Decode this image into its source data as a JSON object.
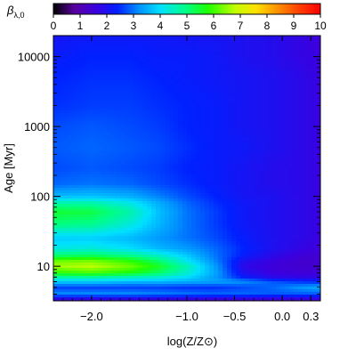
{
  "chart_data": {
    "type": "heatmap",
    "title": "",
    "xlabel": "log(Z/Z⊙)",
    "ylabel": "Age [Myr]",
    "colorbar_label": "β",
    "colorbar_label_subscript": "λ,0",
    "colorbar_range": [
      0,
      10
    ],
    "colorbar_ticks": [
      "0",
      "1",
      "2",
      "3",
      "4",
      "5",
      "6",
      "7",
      "8",
      "9",
      "10"
    ],
    "colormap": "rainbow (black → purple → blue → cyan → green → yellow → orange → red)",
    "x_scale": "linear",
    "y_scale": "log",
    "xlim": [
      -2.4,
      0.4
    ],
    "ylim": [
      3.2,
      20000
    ],
    "x_ticks": [
      {
        "value": -2.0,
        "label": "−2.0"
      },
      {
        "value": -1.0,
        "label": "−1.0"
      },
      {
        "value": -0.5,
        "label": "−0.5"
      },
      {
        "value": 0.0,
        "label": "0.0"
      },
      {
        "value": 0.3,
        "label": "0.3"
      }
    ],
    "y_ticks": [
      {
        "value": 10,
        "label": "10"
      },
      {
        "value": 100,
        "label": "100"
      },
      {
        "value": 1000,
        "label": "1000"
      },
      {
        "value": 10000,
        "label": "10000"
      }
    ],
    "x": [
      -2.4,
      -2.0,
      -1.6,
      -1.3,
      -1.0,
      -0.7,
      -0.4,
      -0.1,
      0.2,
      0.4
    ],
    "y": [
      3.2,
      4,
      5,
      6,
      7,
      8,
      10,
      12,
      14,
      18,
      25,
      40,
      60,
      80,
      100,
      150,
      250,
      500,
      1000,
      2000,
      5000,
      10000,
      20000
    ],
    "values": [
      [
        1.2,
        1.2,
        1.2,
        1.2,
        1.2,
        1.2,
        1.2,
        1.2,
        1.2,
        1.2
      ],
      [
        3.2,
        3.2,
        3.2,
        3.1,
        3.0,
        2.9,
        2.9,
        2.8,
        2.8,
        2.8
      ],
      [
        2.6,
        2.6,
        2.6,
        2.6,
        2.5,
        2.5,
        2.7,
        2.9,
        3.3,
        3.5
      ],
      [
        3.8,
        3.8,
        3.6,
        3.6,
        3.5,
        3.4,
        3.2,
        2.8,
        2.5,
        2.4
      ],
      [
        4.8,
        4.8,
        4.6,
        4.4,
        4.0,
        3.3,
        2.3,
        1.8,
        1.7,
        1.7
      ],
      [
        5.8,
        6.0,
        5.7,
        5.2,
        4.4,
        3.4,
        2.0,
        1.6,
        1.5,
        1.5
      ],
      [
        6.6,
        6.8,
        6.3,
        5.6,
        4.6,
        3.3,
        1.8,
        1.5,
        1.4,
        1.4
      ],
      [
        6.2,
        6.3,
        5.8,
        5.1,
        4.1,
        3.1,
        2.0,
        1.6,
        1.4,
        1.4
      ],
      [
        5.2,
        5.3,
        5.0,
        4.5,
        3.8,
        3.0,
        2.3,
        1.8,
        1.5,
        1.4
      ],
      [
        4.2,
        4.3,
        4.0,
        3.6,
        3.3,
        2.9,
        2.4,
        2.0,
        1.7,
        1.5
      ],
      [
        3.8,
        3.8,
        3.6,
        3.3,
        3.0,
        2.7,
        2.3,
        2.0,
        1.8,
        1.6
      ],
      [
        5.0,
        4.9,
        4.3,
        3.6,
        3.0,
        2.6,
        2.2,
        2.0,
        1.8,
        1.6
      ],
      [
        5.5,
        5.4,
        4.7,
        3.7,
        3.0,
        2.6,
        2.2,
        2.0,
        1.8,
        1.6
      ],
      [
        4.7,
        4.7,
        4.2,
        3.5,
        2.9,
        2.5,
        2.2,
        2.0,
        1.8,
        1.6
      ],
      [
        3.6,
        3.7,
        3.5,
        3.1,
        2.7,
        2.4,
        2.1,
        2.0,
        1.8,
        1.6
      ],
      [
        2.9,
        3.0,
        2.9,
        2.7,
        2.5,
        2.3,
        2.1,
        1.9,
        1.8,
        1.6
      ],
      [
        2.7,
        2.8,
        2.7,
        2.6,
        2.4,
        2.3,
        2.1,
        1.9,
        1.8,
        1.6
      ],
      [
        2.8,
        2.9,
        2.8,
        2.7,
        2.5,
        2.3,
        2.2,
        2.0,
        1.8,
        1.6
      ],
      [
        2.7,
        2.8,
        2.7,
        2.6,
        2.4,
        2.3,
        2.1,
        2.0,
        1.8,
        1.6
      ],
      [
        2.5,
        2.6,
        2.6,
        2.5,
        2.4,
        2.3,
        2.1,
        2.0,
        1.8,
        1.6
      ],
      [
        2.4,
        2.5,
        2.5,
        2.4,
        2.3,
        2.2,
        2.1,
        2.0,
        1.8,
        1.6
      ],
      [
        2.3,
        2.4,
        2.4,
        2.3,
        2.3,
        2.2,
        2.0,
        1.9,
        1.7,
        1.6
      ],
      [
        2.1,
        2.2,
        2.2,
        2.2,
        2.1,
        2.1,
        2.0,
        1.9,
        1.7,
        1.5
      ]
    ],
    "grid": false,
    "legend": "colorbar-top"
  }
}
